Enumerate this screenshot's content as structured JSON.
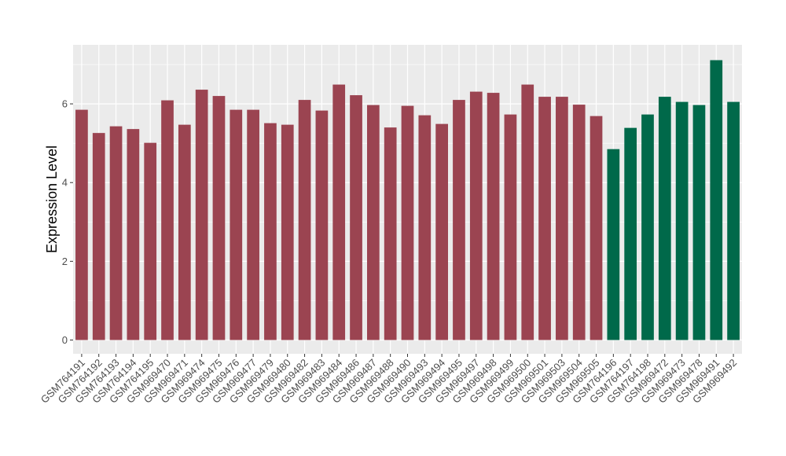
{
  "chart_data": {
    "type": "bar",
    "title": "",
    "xlabel": "",
    "ylabel": "Expression Level",
    "ylim": [
      -0.35,
      7.5
    ],
    "yticks": [
      0,
      2,
      4,
      6
    ],
    "grid": true,
    "legend": "none",
    "colors": {
      "group_a": "#9b4451",
      "group_b": "#00694a",
      "panel": "#ebebeb",
      "grid": "#ffffff"
    },
    "categories": [
      "GSM764191",
      "GSM764192",
      "GSM764193",
      "GSM764194",
      "GSM764195",
      "GSM969470",
      "GSM969471",
      "GSM969474",
      "GSM969475",
      "GSM969476",
      "GSM969477",
      "GSM969479",
      "GSM969480",
      "GSM969482",
      "GSM969483",
      "GSM969484",
      "GSM969486",
      "GSM969487",
      "GSM969488",
      "GSM969490",
      "GSM969493",
      "GSM969494",
      "GSM969495",
      "GSM969497",
      "GSM969498",
      "GSM969499",
      "GSM969500",
      "GSM969501",
      "GSM969503",
      "GSM969504",
      "GSM969505",
      "GSM764196",
      "GSM764197",
      "GSM764198",
      "GSM969472",
      "GSM969473",
      "GSM969478",
      "GSM969491",
      "GSM969492"
    ],
    "values": [
      5.85,
      5.26,
      5.43,
      5.36,
      5.01,
      6.09,
      5.47,
      6.36,
      6.2,
      5.85,
      5.85,
      5.51,
      5.47,
      6.1,
      5.83,
      6.49,
      6.22,
      5.97,
      5.4,
      5.95,
      5.71,
      5.49,
      6.1,
      6.31,
      6.28,
      5.73,
      6.49,
      6.18,
      6.18,
      5.98,
      5.69,
      4.85,
      5.39,
      5.73,
      6.18,
      6.05,
      5.97,
      7.11,
      6.05
    ],
    "groups": [
      "a",
      "a",
      "a",
      "a",
      "a",
      "a",
      "a",
      "a",
      "a",
      "a",
      "a",
      "a",
      "a",
      "a",
      "a",
      "a",
      "a",
      "a",
      "a",
      "a",
      "a",
      "a",
      "a",
      "a",
      "a",
      "a",
      "a",
      "a",
      "a",
      "a",
      "a",
      "b",
      "b",
      "b",
      "b",
      "b",
      "b",
      "b",
      "b"
    ]
  }
}
